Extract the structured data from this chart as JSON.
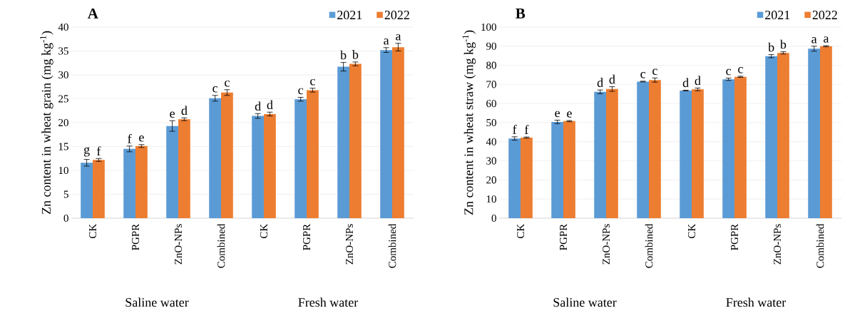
{
  "chart_data": [
    {
      "type": "bar",
      "title": "A",
      "ylabel": "Zn content in wheat grain (mg kg$^{-1}$)",
      "categories": [
        "CK",
        "PGPR",
        "ZnO-NPs",
        "Combined",
        "CK",
        "PGPR",
        "ZnO-NPs",
        "Combined"
      ],
      "series": [
        {
          "name": "2021",
          "color": "#5b9bd5",
          "values": [
            11.6,
            14.5,
            19.3,
            25.1,
            21.4,
            24.9,
            31.7,
            35.2
          ],
          "errors": [
            0.7,
            0.6,
            1.1,
            0.6,
            0.5,
            0.4,
            0.9,
            0.5
          ],
          "value_labels": [
            "g",
            "f",
            "e",
            "c",
            "d",
            "c",
            "b",
            "a"
          ]
        },
        {
          "name": "2022",
          "color": "#ed7d31",
          "values": [
            12.2,
            15.1,
            20.7,
            26.3,
            21.8,
            26.8,
            32.3,
            35.8
          ],
          "errors": [
            0.3,
            0.3,
            0.3,
            0.6,
            0.4,
            0.4,
            0.4,
            0.8
          ],
          "value_labels": [
            "f",
            "e",
            "d",
            "c",
            "d",
            "c",
            "b",
            "a"
          ]
        }
      ],
      "ylim": [
        0,
        40
      ],
      "yticks": [
        0,
        5,
        10,
        15,
        20,
        25,
        30,
        35,
        40
      ],
      "grid": "y",
      "legend": "top right",
      "annotations": [
        "Saline water",
        "Fresh water"
      ]
    },
    {
      "type": "bar",
      "title": "B",
      "ylabel": "Zn content in wheat straw (mg kg$^{-1}$)",
      "categories": [
        "CK",
        "PGPR",
        "ZnO-NPs",
        "Combined",
        "CK",
        "PGPR",
        "ZnO-NPs",
        "Combined"
      ],
      "series": [
        {
          "name": "2021",
          "color": "#5b9bd5",
          "values": [
            41.7,
            50.4,
            66.1,
            71.5,
            66.8,
            72.7,
            84.8,
            88.7
          ],
          "errors": [
            0.9,
            0.9,
            1.0,
            0.2,
            0.2,
            0.6,
            0.8,
            1.3
          ],
          "value_labels": [
            "f",
            "e",
            "d",
            "c",
            "d",
            "c",
            "b",
            "a"
          ]
        },
        {
          "name": "2022",
          "color": "#ed7d31",
          "values": [
            42.2,
            50.8,
            67.6,
            72.3,
            67.4,
            74.0,
            86.5,
            90.0
          ],
          "errors": [
            0.3,
            0.3,
            1.2,
            1.1,
            0.7,
            0.3,
            0.6,
            0.3
          ],
          "value_labels": [
            "f",
            "e",
            "d",
            "c",
            "d",
            "c",
            "b",
            "a"
          ]
        }
      ],
      "ylim": [
        0,
        100
      ],
      "yticks": [
        0,
        10,
        20,
        30,
        40,
        50,
        60,
        70,
        80,
        90,
        100
      ],
      "grid": "y",
      "legend": "top right",
      "annotations": [
        "Saline water",
        "Fresh water"
      ]
    }
  ]
}
